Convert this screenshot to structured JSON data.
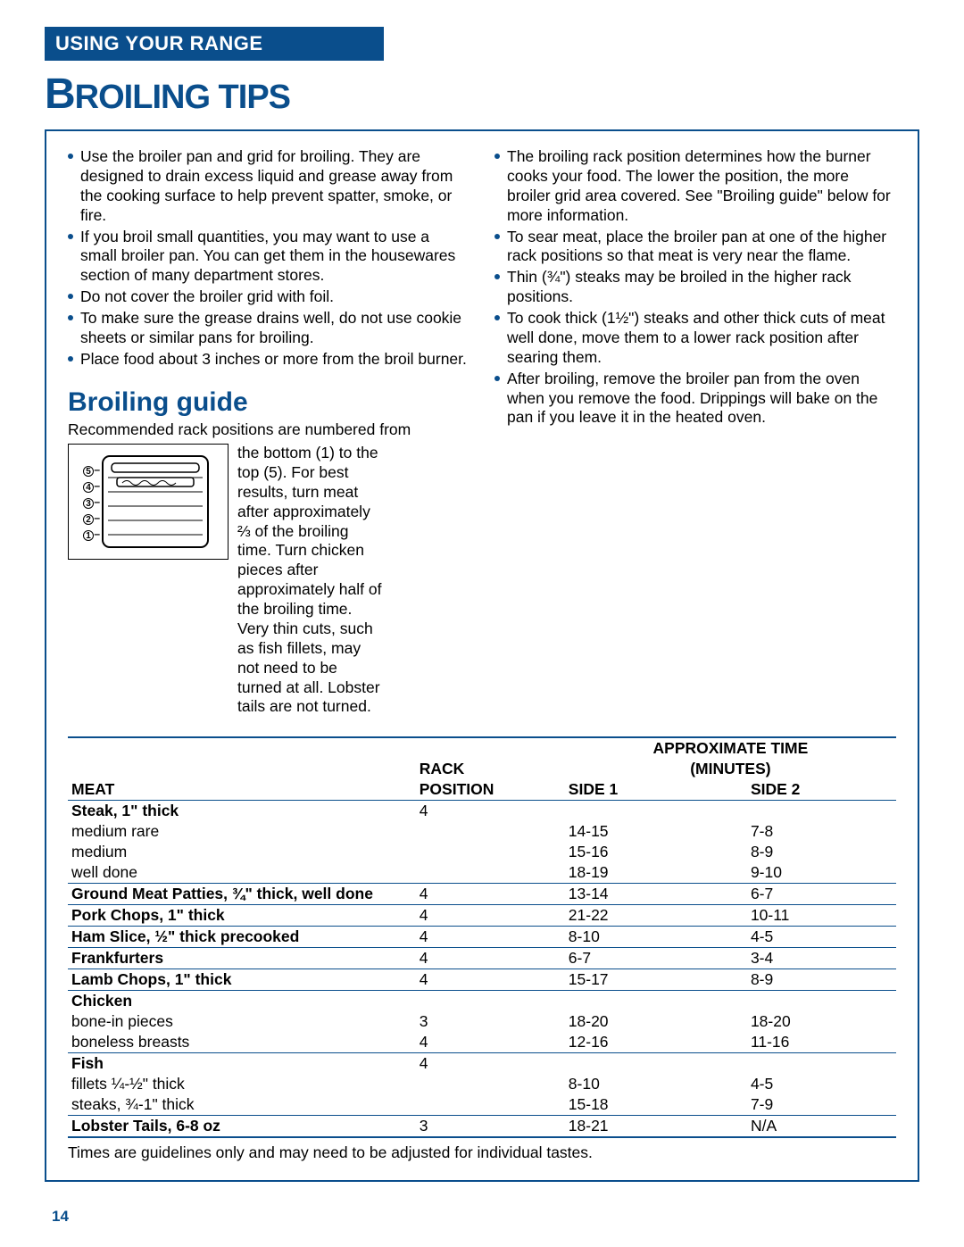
{
  "header": {
    "section_tag": "USING YOUR RANGE",
    "title_first": "B",
    "title_rest": "ROILING TIPS"
  },
  "colors": {
    "brand_blue": "#0a4e8c",
    "text": "#000000",
    "bg": "#ffffff"
  },
  "tips_left": [
    "Use the broiler pan and grid for broiling. They are designed to drain excess liquid and grease away from the cooking surface to help prevent spatter, smoke, or fire.",
    "If you broil small quantities, you may want to use a small broiler pan. You can get them in the housewares section of many department stores.",
    "Do not cover the broiler grid with foil.",
    "To make sure the grease drains well, do not use cookie sheets or similar pans for broiling.",
    "Place food about 3 inches or more from the broil burner."
  ],
  "tips_right": [
    "The broiling rack position determines how the burner cooks your food. The lower the position, the more broiler grid area covered. See \"Broiling guide\" below for more information.",
    "To sear meat, place the broiler pan at one of the higher rack positions so that meat is very near the flame.",
    "Thin (¾\") steaks may be broiled in the higher rack positions.",
    "To cook thick (1½\") steaks and other thick cuts of meat well done, move them to a lower rack position after searing them.",
    "After broiling, remove the broiler pan from the oven when you remove the food. Drippings will bake on the pan if you leave it in the heated oven."
  ],
  "guide": {
    "heading": "Broiling guide",
    "intro": "Recommended rack positions are numbered from",
    "body": "the bottom (1) to the top (5). For best results, turn meat after approximately ⅔ of the broiling time. Turn chicken pieces after approximately half of the broiling time. Very thin cuts, such as fish fillets, may not need to be turned at all. Lobster tails are not turned.",
    "rack_labels": [
      "5",
      "4",
      "3",
      "2",
      "1"
    ]
  },
  "table": {
    "headers": {
      "approx_time": "APPROXIMATE TIME",
      "minutes": "(MINUTES)",
      "meat": "MEAT",
      "rack": "RACK",
      "position": "POSITION",
      "side1": "SIDE 1",
      "side2": "SIDE 2"
    },
    "rows": [
      {
        "type": "header",
        "meat": "Steak, 1\" thick",
        "rack": "4",
        "side1": "",
        "side2": ""
      },
      {
        "type": "sub",
        "meat": "medium rare",
        "rack": "",
        "side1": "14-15",
        "side2": "7-8"
      },
      {
        "type": "sub",
        "meat": "medium",
        "rack": "",
        "side1": "15-16",
        "side2": "8-9"
      },
      {
        "type": "sub",
        "meat": "well done",
        "rack": "",
        "side1": "18-19",
        "side2": "9-10",
        "sep": true
      },
      {
        "type": "header",
        "meat": "Ground Meat Patties, ¾\" thick, well done",
        "rack": "4",
        "side1": "13-14",
        "side2": "6-7",
        "sep": true
      },
      {
        "type": "header",
        "meat": "Pork Chops, 1\" thick",
        "rack": "4",
        "side1": "21-22",
        "side2": "10-11",
        "sep": true
      },
      {
        "type": "header",
        "meat": "Ham Slice, ½\" thick precooked",
        "rack": "4",
        "side1": "8-10",
        "side2": "4-5",
        "sep": true
      },
      {
        "type": "header",
        "meat": "Frankfurters",
        "rack": "4",
        "side1": "6-7",
        "side2": "3-4",
        "sep": true
      },
      {
        "type": "header",
        "meat": "Lamb Chops, 1\" thick",
        "rack": "4",
        "side1": "15-17",
        "side2": "8-9",
        "sep": true
      },
      {
        "type": "header",
        "meat": "Chicken",
        "rack": "",
        "side1": "",
        "side2": ""
      },
      {
        "type": "sub",
        "meat": "bone-in pieces",
        "rack": "3",
        "side1": "18-20",
        "side2": "18-20"
      },
      {
        "type": "sub",
        "meat": "boneless breasts",
        "rack": "4",
        "side1": "12-16",
        "side2": "11-16",
        "sep": true
      },
      {
        "type": "header",
        "meat": "Fish",
        "rack": "4",
        "side1": "",
        "side2": ""
      },
      {
        "type": "sub",
        "meat": "fillets ¼-½\" thick",
        "rack": "",
        "side1": "8-10",
        "side2": "4-5"
      },
      {
        "type": "sub",
        "meat": "steaks, ¾-1\" thick",
        "rack": "",
        "side1": "15-18",
        "side2": "7-9",
        "sep": true
      },
      {
        "type": "header",
        "meat": "Lobster Tails, 6-8 oz",
        "rack": "3",
        "side1": "18-21",
        "side2": "N/A",
        "last": true
      }
    ],
    "footnote": "Times are guidelines only and may need to be adjusted for individual tastes."
  },
  "page_number": "14"
}
